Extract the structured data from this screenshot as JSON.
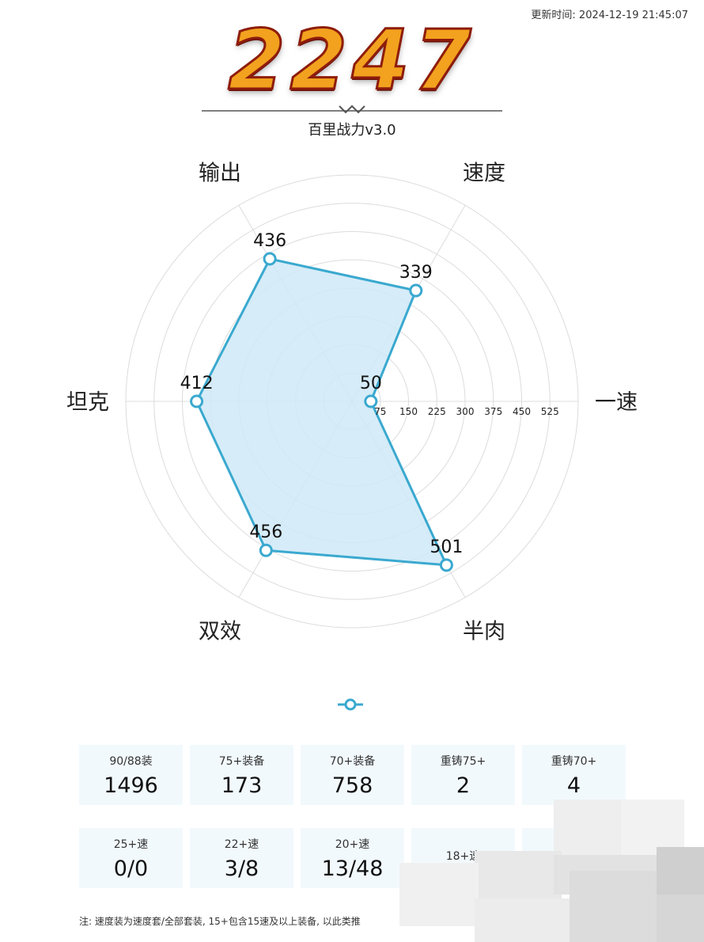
{
  "update_time": "更新时间: 2024-12-19 21:45:07",
  "score": "2247",
  "subtitle": "百里战力v3.0",
  "chart_data": {
    "type": "radar",
    "axes": [
      "一速",
      "速度",
      "输出",
      "坦克",
      "双效",
      "半肉"
    ],
    "values": [
      50,
      339,
      436,
      412,
      456,
      501
    ],
    "rmax": 600,
    "ticks": [
      75,
      150,
      225,
      300,
      375,
      450,
      525
    ],
    "grid": true,
    "colors": {
      "line": "#3aa9cf",
      "fill": "#cfe9f7",
      "grid": "#dcdcdc"
    }
  },
  "stats_row1": [
    {
      "label": "90/88装",
      "value": "1496"
    },
    {
      "label": "75+装备",
      "value": "173"
    },
    {
      "label": "70+装备",
      "value": "758"
    },
    {
      "label": "重铸75+",
      "value": "2"
    },
    {
      "label": "重铸70+",
      "value": "4"
    }
  ],
  "stats_row2": [
    {
      "label": "25+速",
      "value": "0/0"
    },
    {
      "label": "22+速",
      "value": "3/8"
    },
    {
      "label": "20+速",
      "value": "13/48"
    },
    {
      "label": "18+速",
      "value": ""
    },
    {
      "label": "",
      "value": ""
    }
  ],
  "note": "注: 速度装为速度套/全部套装, 15+包含15速及以上装备, 以此类推"
}
